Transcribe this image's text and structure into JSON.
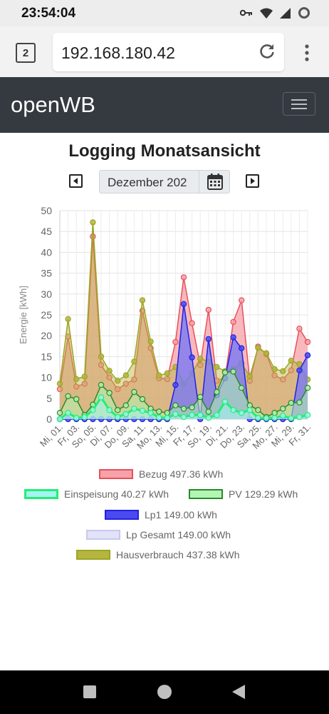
{
  "status": {
    "time": "23:54:04"
  },
  "browser": {
    "tab_count": "2",
    "url": "192.168.180.42"
  },
  "navbar": {
    "brand": "openWB"
  },
  "page": {
    "title": "Logging Monatsansicht",
    "month": "Dezember 202"
  },
  "chart_data": {
    "type": "line",
    "ylabel": "Energie [kWh]",
    "xlabel": "",
    "ylim": [
      0,
      50
    ],
    "yticks": [
      0,
      5,
      10,
      15,
      20,
      25,
      30,
      35,
      40,
      45,
      50
    ],
    "grid": true,
    "legend_position": "bottom",
    "x": [
      1,
      2,
      3,
      4,
      5,
      6,
      7,
      8,
      9,
      10,
      11,
      12,
      13,
      14,
      15,
      16,
      17,
      18,
      19,
      20,
      21,
      22,
      23,
      24,
      25,
      26,
      27,
      28,
      29,
      30,
      31
    ],
    "tick_labels": [
      "Mi, 01.",
      "Fr, 03.",
      "So, 05.",
      "Di, 07.",
      "Do, 09.",
      "Sa, 11.",
      "Mo, 13.",
      "Mi, 15.",
      "Fr, 17.",
      "So, 19.",
      "Di, 21.",
      "Do, 23.",
      "Sa, 25.",
      "Mo, 27.",
      "Mi, 29.",
      "Fr, 31."
    ],
    "series": [
      {
        "name": "Bezug 497.36 kWh",
        "fill": "#f6a2a8",
        "stroke": "#e8505b",
        "values": [
          7.2,
          19.8,
          7.8,
          8.5,
          43.8,
          13.0,
          10.0,
          7.2,
          8.5,
          9.5,
          26.0,
          17.0,
          9.8,
          9.6,
          18.5,
          34.0,
          23.0,
          13.0,
          26.2,
          9.2,
          10.0,
          23.3,
          28.5,
          9.2,
          17.4,
          15.6,
          10.5,
          9.5,
          11.7,
          21.7,
          18.5
        ]
      },
      {
        "name": "Einspeisung 40.27 kWh",
        "fill": "#a4f4f0",
        "stroke": "#22ee77",
        "values": [
          0.0,
          1.5,
          0.3,
          0.5,
          2.2,
          5.2,
          2.2,
          0.5,
          1.2,
          2.5,
          2.0,
          1.5,
          0.4,
          0.3,
          1.2,
          0.5,
          1.0,
          1.0,
          0.3,
          1.0,
          4.2,
          2.2,
          1.5,
          2.2,
          0.3,
          0.2,
          0.3,
          0.8,
          0.2,
          0.5,
          1.0
        ]
      },
      {
        "name": "PV 129.29 kWh",
        "fill": "#b3f5b3",
        "stroke": "#2a8a2a",
        "values": [
          1.5,
          5.5,
          4.8,
          1.0,
          3.5,
          8.2,
          6.3,
          2.2,
          3.3,
          6.5,
          4.8,
          2.5,
          1.8,
          1.5,
          3.3,
          2.5,
          2.8,
          5.3,
          1.8,
          6.5,
          11.2,
          11.4,
          7.5,
          3.3,
          2.2,
          0.5,
          1.5,
          2.5,
          3.9,
          4.0,
          7.5
        ]
      },
      {
        "name": "Lp1 149.00 kWh",
        "fill": "#4a4af0",
        "stroke": "#2222dd",
        "values": [
          0,
          0,
          0,
          0,
          0,
          0,
          0,
          0,
          0,
          0,
          0,
          0,
          0,
          0,
          8.2,
          27.6,
          14.8,
          0,
          19.2,
          5.7,
          9.8,
          19.6,
          17.0,
          0,
          0,
          0,
          0,
          0,
          0,
          11.7,
          15.3
        ]
      },
      {
        "name": "Lp Gesamt 149.00 kWh",
        "fill": "#e2e2f8",
        "stroke": "#c8c8ee",
        "values": [
          0,
          0,
          0,
          0,
          0,
          0,
          0,
          0,
          0,
          0,
          0,
          0,
          0,
          0,
          8.2,
          27.6,
          14.8,
          0,
          19.2,
          5.7,
          9.8,
          19.6,
          17.0,
          0,
          0,
          0,
          0,
          0,
          0,
          11.7,
          15.3
        ]
      },
      {
        "name": "Hausverbrauch 437.38 kWh",
        "fill": "#b5b540",
        "stroke": "#9aa624",
        "values": [
          8.5,
          24.0,
          9.6,
          10.2,
          47.2,
          15.0,
          11.6,
          9.2,
          10.5,
          13.8,
          28.5,
          18.6,
          10.5,
          11.0,
          12.5,
          8.5,
          11.0,
          14.5,
          13.8,
          12.5,
          11.5,
          12.0,
          13.4,
          10.2,
          17.1,
          15.8,
          12.0,
          11.5,
          14.0,
          13.2,
          9.5
        ]
      }
    ]
  },
  "icons": {
    "back": "caret-left-icon",
    "forward": "caret-right-icon",
    "calendar": "calendar-icon",
    "reload": "reload-icon",
    "menu": "hamburger-icon"
  }
}
